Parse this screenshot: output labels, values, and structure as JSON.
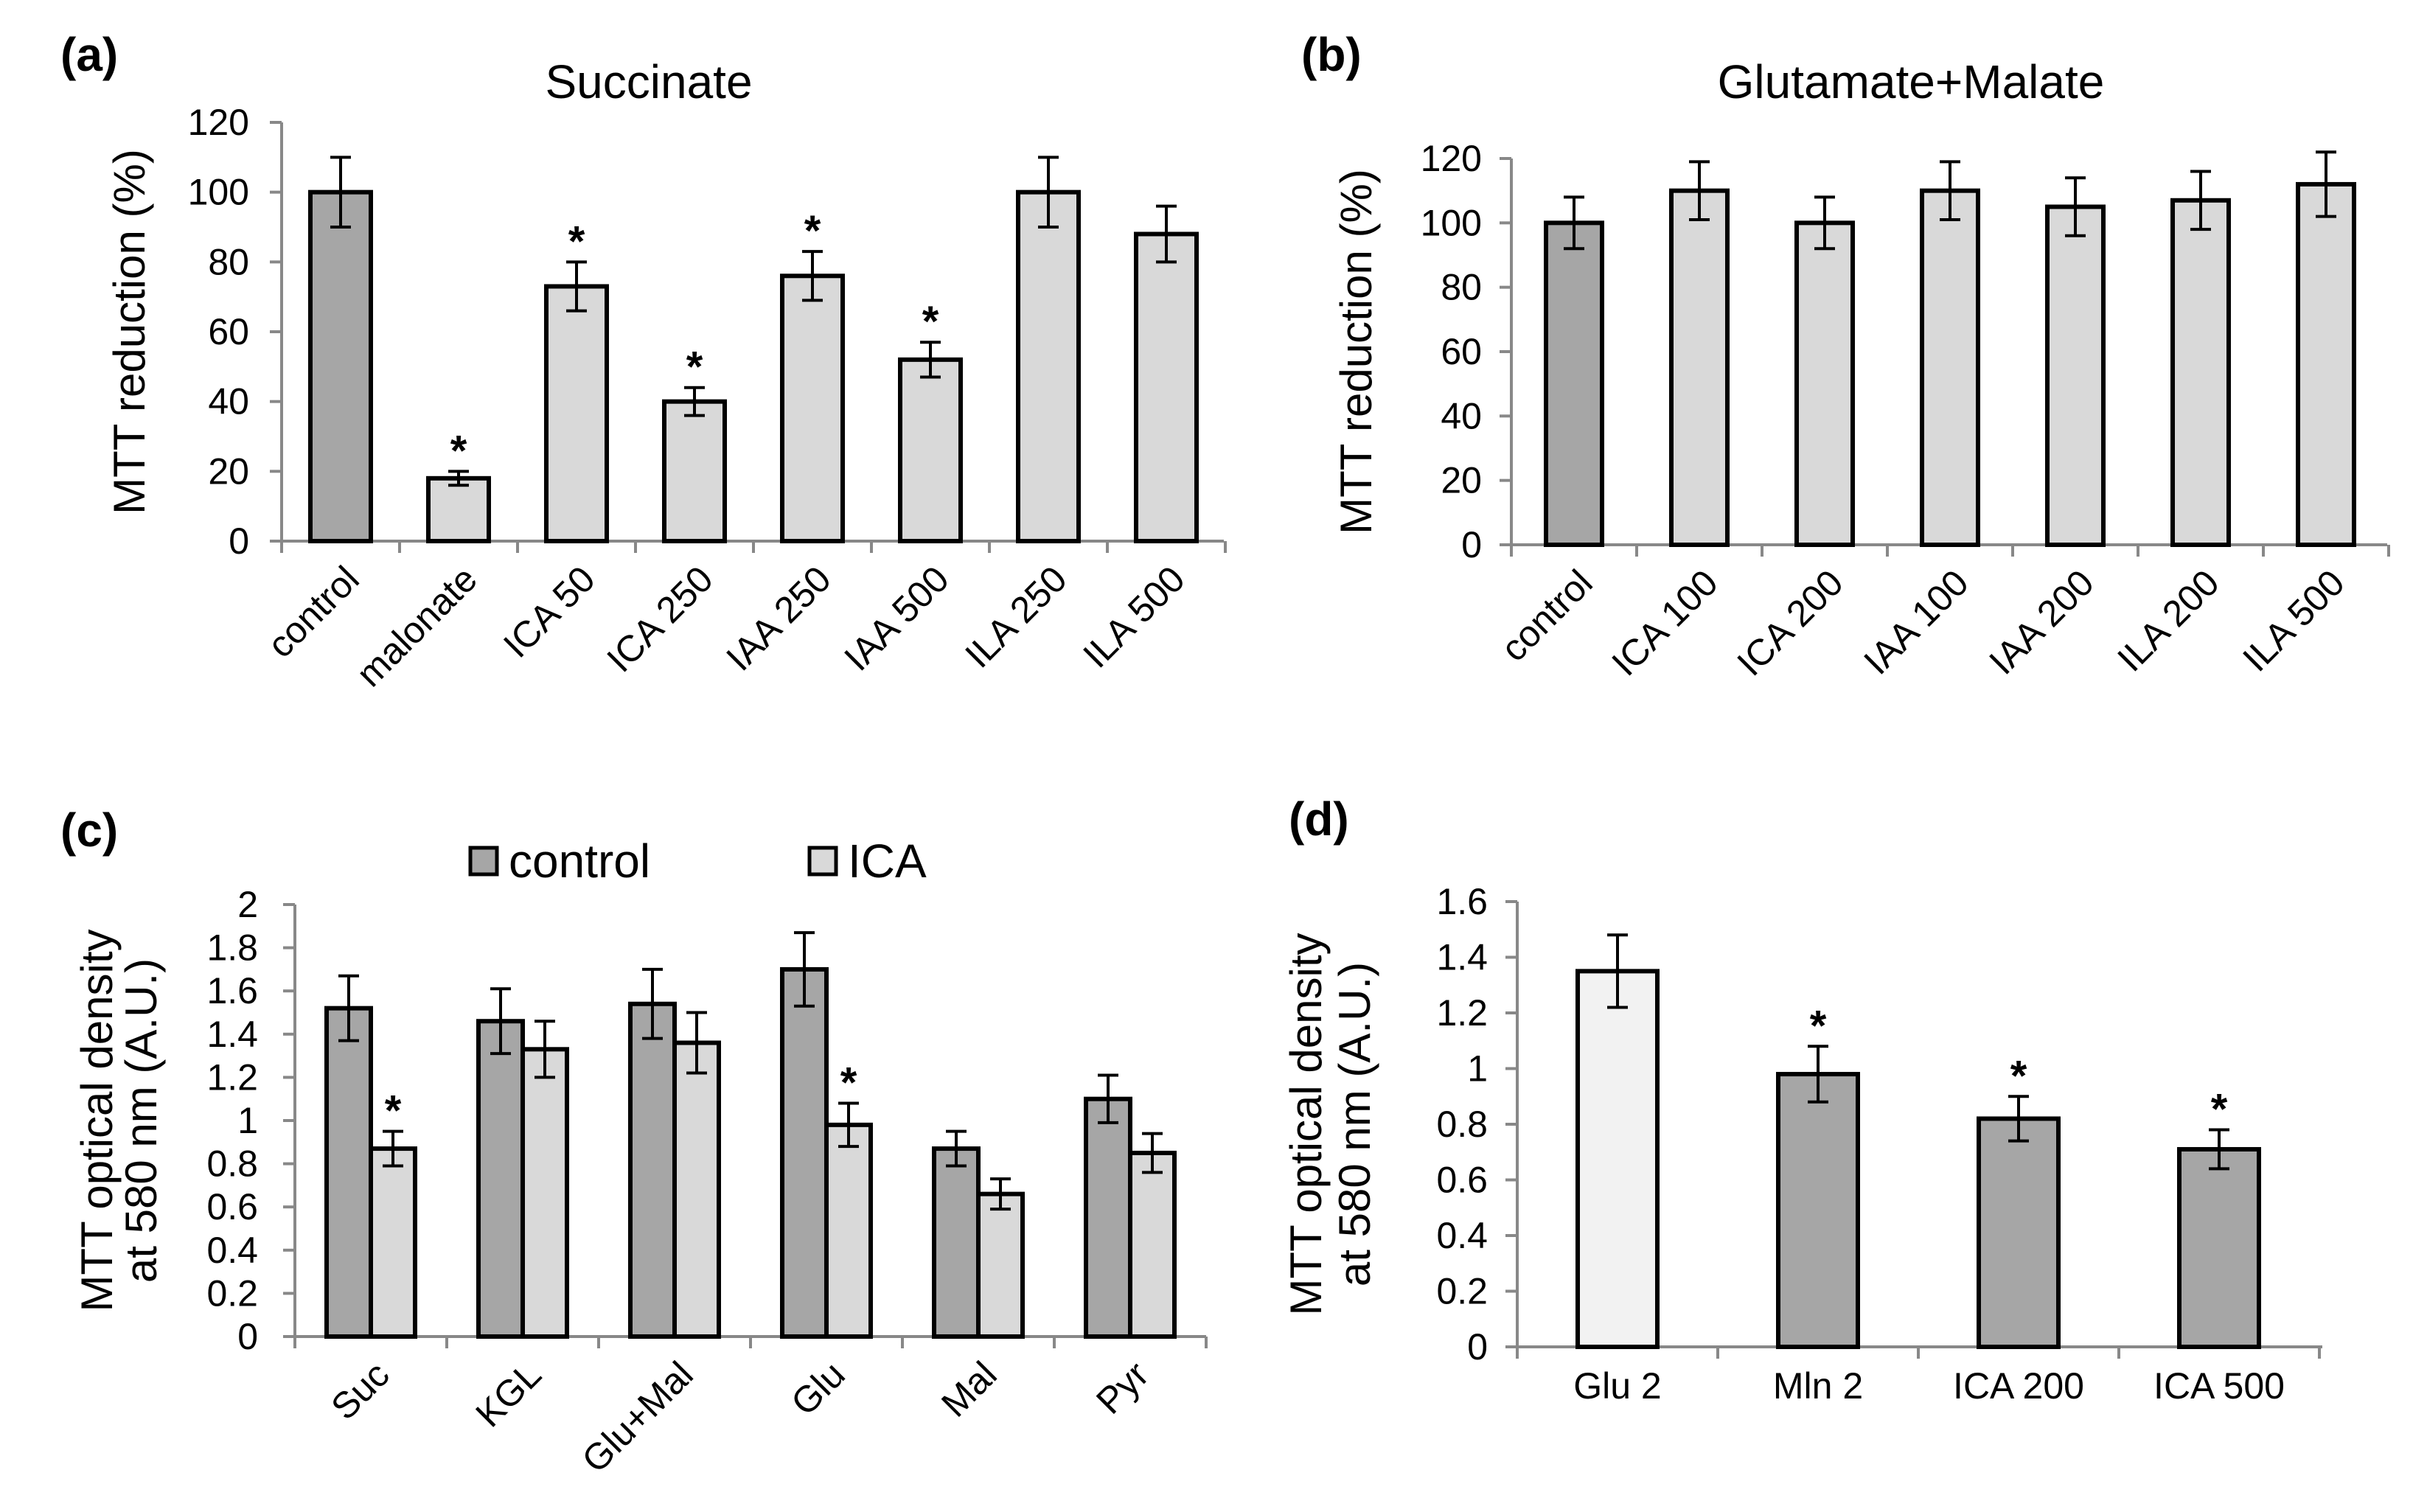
{
  "figure": {
    "panel_labels": [
      "(a)",
      "(b)",
      "(c)",
      "(d)"
    ]
  },
  "colors": {
    "control_bar": "#a6a6a6",
    "treatment_bar": "#d9d9d9",
    "light_bar": "#f2f2f2",
    "axis": "#888888",
    "outline": "#000000"
  },
  "chart_data": [
    {
      "panel": "(a)",
      "type": "bar",
      "title": "Succinate",
      "xlabel": "",
      "ylabel": "MTT reduction (%)",
      "ylim": [
        0,
        120
      ],
      "yticks": [
        "0",
        "20",
        "40",
        "60",
        "80",
        "100",
        "120"
      ],
      "categories": [
        "control",
        "malonate",
        "ICA 50",
        "ICA 250",
        "IAA 250",
        "IAA 500",
        "ILA 250",
        "ILA 500"
      ],
      "values": [
        100,
        18,
        73,
        40,
        76,
        52,
        100,
        88
      ],
      "errors": [
        10,
        2,
        7,
        4,
        7,
        5,
        10,
        8
      ],
      "significant": [
        "",
        "*",
        "*",
        "*",
        "*",
        "*",
        "",
        ""
      ],
      "bar_colors": [
        "#a6a6a6",
        "#d9d9d9",
        "#d9d9d9",
        "#d9d9d9",
        "#d9d9d9",
        "#d9d9d9",
        "#d9d9d9",
        "#d9d9d9"
      ],
      "rotate_labels": true,
      "grid": false
    },
    {
      "panel": "(b)",
      "type": "bar",
      "title": "Glutamate+Malate",
      "xlabel": "",
      "ylabel": "MTT reduction (%)",
      "ylim": [
        0,
        120
      ],
      "yticks": [
        "0",
        "20",
        "40",
        "60",
        "80",
        "100",
        "120"
      ],
      "categories": [
        "control",
        "ICA 100",
        "ICA 200",
        "IAA 100",
        "IAA 200",
        "ILA  200",
        "ILA  500"
      ],
      "values": [
        100,
        110,
        100,
        110,
        105,
        107,
        112
      ],
      "errors": [
        8,
        9,
        8,
        9,
        9,
        9,
        10
      ],
      "significant": [
        "",
        "",
        "",
        "",
        "",
        "",
        ""
      ],
      "bar_colors": [
        "#a6a6a6",
        "#d9d9d9",
        "#d9d9d9",
        "#d9d9d9",
        "#d9d9d9",
        "#d9d9d9",
        "#d9d9d9"
      ],
      "rotate_labels": true,
      "grid": false
    },
    {
      "panel": "(c)",
      "type": "bar",
      "title": "",
      "xlabel": "",
      "ylabel": [
        "MTT optical density",
        "at 580 nm (A.U.)"
      ],
      "ylim": [
        0,
        2
      ],
      "yticks": [
        "0",
        "0.2",
        "0.4",
        "0.6",
        "0.8",
        "1",
        "1.2",
        "1.4",
        "1.6",
        "1.8",
        "2"
      ],
      "categories": [
        "Suc",
        "KGL",
        "Glu+Mal",
        "Glu",
        "Mal",
        "Pyr"
      ],
      "series": [
        {
          "name": "control",
          "color": "#a6a6a6",
          "values": [
            1.52,
            1.46,
            1.54,
            1.7,
            0.87,
            1.1
          ],
          "errors": [
            0.15,
            0.15,
            0.16,
            0.17,
            0.08,
            0.11
          ],
          "significant": [
            "",
            "",
            "",
            "",
            "",
            ""
          ]
        },
        {
          "name": "ICA",
          "color": "#d9d9d9",
          "values": [
            0.87,
            1.33,
            1.36,
            0.98,
            0.66,
            0.85
          ],
          "errors": [
            0.08,
            0.13,
            0.14,
            0.1,
            0.07,
            0.09
          ],
          "significant": [
            "*",
            "",
            "",
            "*",
            "",
            ""
          ]
        }
      ],
      "legend_position": "top-center",
      "rotate_labels": true,
      "grid": false
    },
    {
      "panel": "(d)",
      "type": "bar",
      "title": "",
      "xlabel": "",
      "ylabel": [
        "MTT optical density",
        "at 580 nm (A.U.)"
      ],
      "ylim": [
        0,
        1.6
      ],
      "yticks": [
        "0",
        "0.2",
        "0.4",
        "0.6",
        "0.8",
        "1",
        "1.2",
        "1.4",
        "1.6"
      ],
      "categories": [
        "Glu 2",
        "Mln 2",
        "ICA 200",
        "ICA 500"
      ],
      "values": [
        1.35,
        0.98,
        0.82,
        0.71
      ],
      "errors": [
        0.13,
        0.1,
        0.08,
        0.07
      ],
      "significant": [
        "",
        "*",
        "*",
        "*"
      ],
      "bar_colors": [
        "#f2f2f2",
        "#a6a6a6",
        "#a6a6a6",
        "#a6a6a6"
      ],
      "rotate_labels": false,
      "grid": false
    }
  ]
}
